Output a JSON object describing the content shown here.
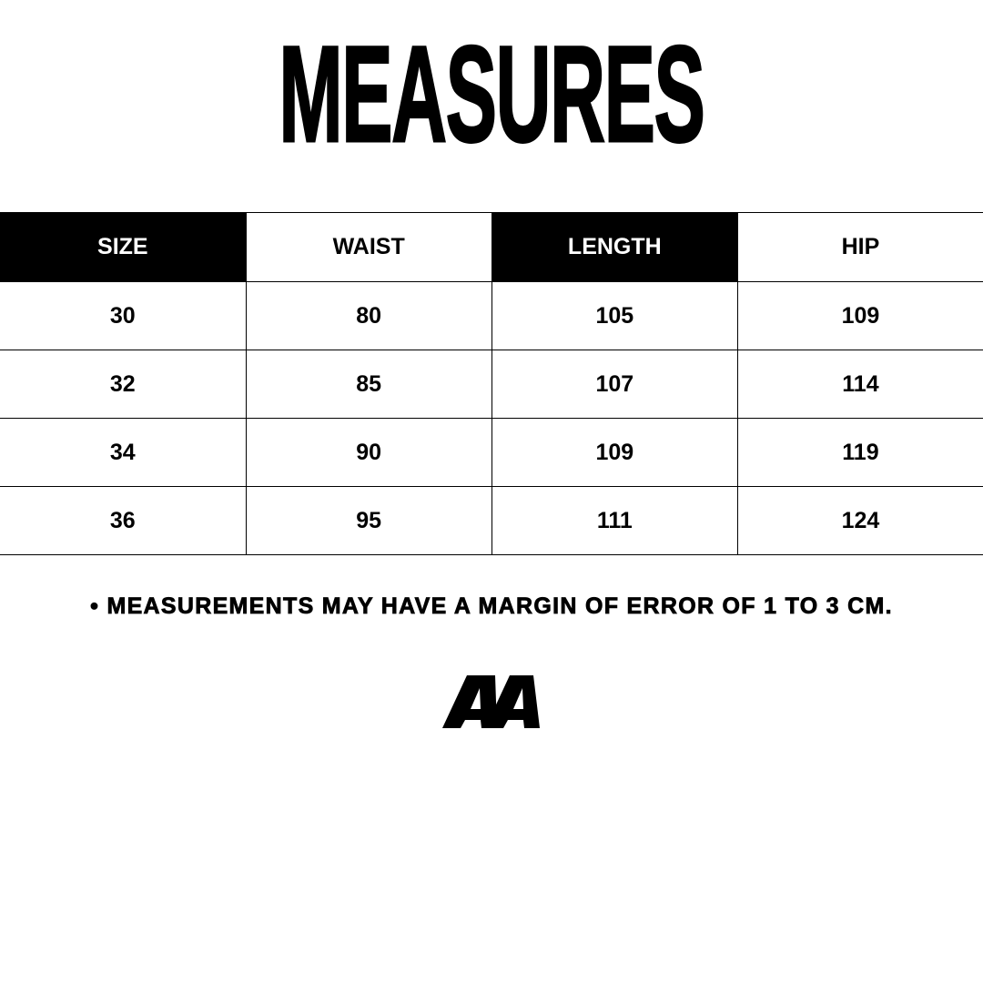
{
  "title": "MEASURES",
  "table": {
    "headers": [
      "SIZE",
      "WAIST",
      "LENGTH",
      "HIP"
    ],
    "rows": [
      [
        "30",
        "80",
        "105",
        "109"
      ],
      [
        "32",
        "85",
        "107",
        "114"
      ],
      [
        "34",
        "90",
        "109",
        "119"
      ],
      [
        "36",
        "95",
        "111",
        "124"
      ]
    ]
  },
  "note": "• MEASUREMENTS MAY HAVE A MARGIN OF ERROR OF 1 TO 3 CM.",
  "logo": {
    "text": "AA"
  },
  "colors": {
    "header_dark": "#000000",
    "header_light": "#ffffff",
    "text": "#000000"
  }
}
